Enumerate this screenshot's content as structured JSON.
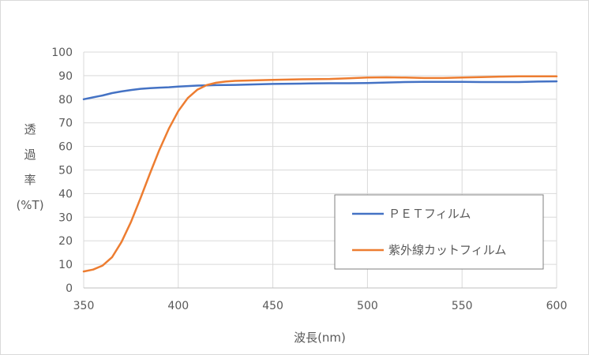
{
  "chart_data": {
    "type": "line",
    "xlabel": "波長(nm)",
    "ylabel_lines": [
      "透",
      "過",
      "率",
      "(%T)"
    ],
    "xlim": [
      350,
      600
    ],
    "ylim": [
      0,
      100
    ],
    "x_ticks": [
      "350",
      "400",
      "450",
      "500",
      "550",
      "600"
    ],
    "y_ticks": [
      "0",
      "10",
      "20",
      "30",
      "40",
      "50",
      "60",
      "70",
      "80",
      "90",
      "100"
    ],
    "grid": true,
    "legend_position": "lower-right",
    "series": [
      {
        "name": "ＰＥＴフィルム",
        "color": "#4472c4",
        "points": [
          [
            350,
            80.0
          ],
          [
            355,
            80.8
          ],
          [
            360,
            81.6
          ],
          [
            365,
            82.6
          ],
          [
            370,
            83.3
          ],
          [
            375,
            83.9
          ],
          [
            380,
            84.4
          ],
          [
            385,
            84.7
          ],
          [
            390,
            84.9
          ],
          [
            395,
            85.1
          ],
          [
            400,
            85.4
          ],
          [
            405,
            85.6
          ],
          [
            410,
            85.8
          ],
          [
            415,
            85.9
          ],
          [
            420,
            86.0
          ],
          [
            430,
            86.1
          ],
          [
            440,
            86.3
          ],
          [
            450,
            86.5
          ],
          [
            460,
            86.6
          ],
          [
            470,
            86.7
          ],
          [
            480,
            86.8
          ],
          [
            490,
            86.8
          ],
          [
            500,
            86.9
          ],
          [
            510,
            87.1
          ],
          [
            520,
            87.3
          ],
          [
            530,
            87.4
          ],
          [
            540,
            87.4
          ],
          [
            550,
            87.4
          ],
          [
            560,
            87.3
          ],
          [
            570,
            87.3
          ],
          [
            580,
            87.3
          ],
          [
            590,
            87.5
          ],
          [
            600,
            87.6
          ]
        ]
      },
      {
        "name": "紫外線カットフィルム",
        "color": "#ed7d31",
        "points": [
          [
            350,
            7.0
          ],
          [
            355,
            7.8
          ],
          [
            360,
            9.5
          ],
          [
            365,
            13.0
          ],
          [
            370,
            19.5
          ],
          [
            375,
            28.0
          ],
          [
            380,
            38.0
          ],
          [
            385,
            48.5
          ],
          [
            390,
            58.5
          ],
          [
            395,
            67.5
          ],
          [
            400,
            75.0
          ],
          [
            405,
            80.5
          ],
          [
            410,
            84.0
          ],
          [
            415,
            86.0
          ],
          [
            420,
            87.0
          ],
          [
            425,
            87.5
          ],
          [
            430,
            87.8
          ],
          [
            440,
            88.0
          ],
          [
            450,
            88.2
          ],
          [
            460,
            88.4
          ],
          [
            470,
            88.5
          ],
          [
            480,
            88.6
          ],
          [
            490,
            88.9
          ],
          [
            500,
            89.2
          ],
          [
            510,
            89.3
          ],
          [
            520,
            89.2
          ],
          [
            530,
            89.0
          ],
          [
            540,
            89.0
          ],
          [
            550,
            89.2
          ],
          [
            560,
            89.4
          ],
          [
            570,
            89.6
          ],
          [
            580,
            89.7
          ],
          [
            590,
            89.7
          ],
          [
            600,
            89.7
          ]
        ]
      }
    ]
  }
}
